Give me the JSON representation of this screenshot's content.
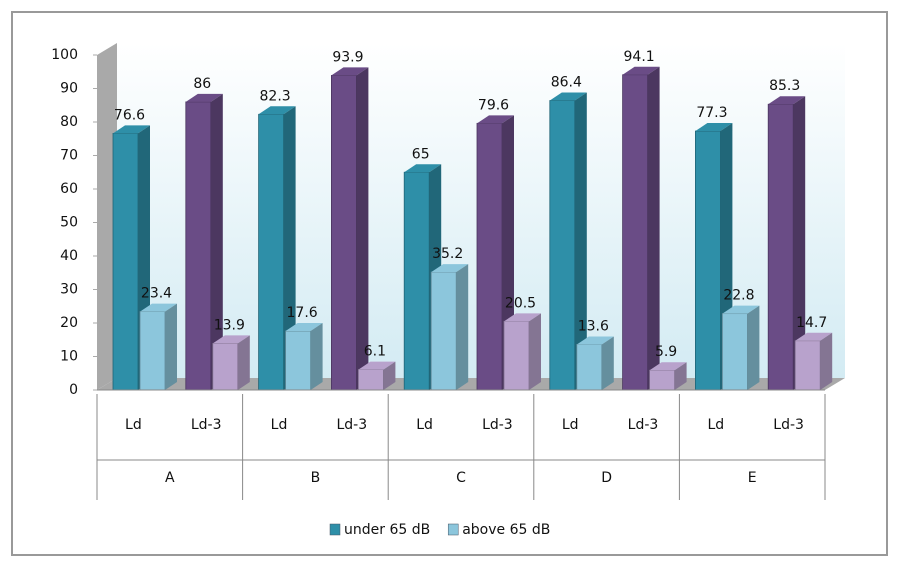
{
  "chart_data": {
    "type": "bar3d",
    "categories": [
      "Ld",
      "Ld-3",
      "Ld",
      "Ld-3",
      "Ld",
      "Ld-3",
      "Ld",
      "Ld-3",
      "Ld",
      "Ld-3"
    ],
    "groups": [
      "A",
      "B",
      "C",
      "D",
      "E"
    ],
    "series": [
      {
        "name": "under 65 dB",
        "color": "#2e8fa8",
        "alt_color": "#6a4c86",
        "values": [
          76.6,
          86,
          82.3,
          93.9,
          65,
          79.6,
          86.4,
          94.1,
          77.3,
          85.3
        ]
      },
      {
        "name": "above 65 dB",
        "color": "#8cc6dc",
        "alt_color": "#b8a2cc",
        "values": [
          23.4,
          13.9,
          17.6,
          6.1,
          35.2,
          20.5,
          13.6,
          5.9,
          22.8,
          14.7
        ]
      }
    ],
    "ylim": [
      0,
      100
    ],
    "yticks": [
      0,
      10,
      20,
      30,
      40,
      50,
      60,
      70,
      80,
      90,
      100
    ]
  }
}
